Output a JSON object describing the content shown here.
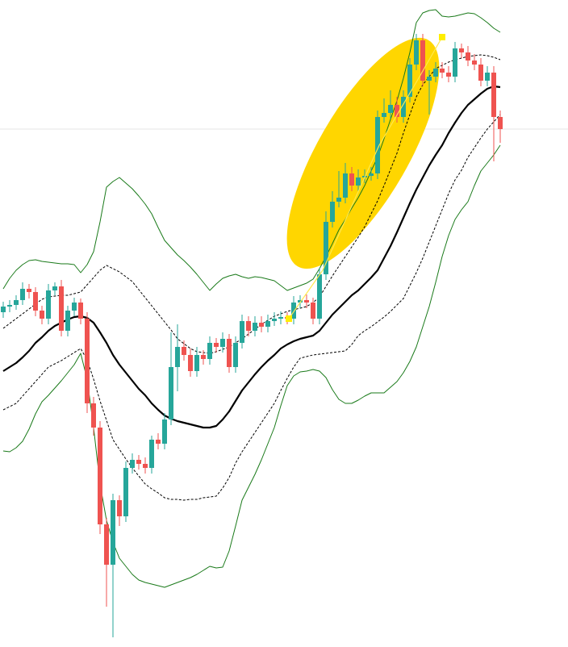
{
  "chart_data": {
    "type": "candlestick",
    "categories": [
      null,
      null,
      null,
      null,
      null,
      null,
      null,
      null,
      null,
      null,
      null,
      null,
      null,
      null,
      null,
      null,
      null,
      null,
      null,
      null,
      null,
      null,
      null,
      null,
      null,
      null,
      null,
      null,
      null,
      null,
      null,
      null,
      null,
      null,
      null,
      null,
      null,
      null,
      null,
      null,
      null,
      null,
      null,
      null,
      null,
      null,
      null,
      null,
      null,
      null,
      null,
      null,
      null,
      null,
      null,
      null,
      null,
      null,
      null,
      null,
      null,
      null,
      null,
      null,
      null,
      null,
      null,
      null,
      null,
      null,
      null,
      null,
      null,
      null,
      null,
      null,
      null,
      null
    ],
    "open": [
      415,
      422,
      424,
      430,
      444,
      440,
      417,
      407,
      442,
      447,
      392,
      417,
      427,
      407,
      302,
      272,
      152,
      102,
      182,
      162,
      222,
      232,
      227,
      222,
      257,
      252,
      282,
      347,
      372,
      362,
      342,
      362,
      357,
      377,
      372,
      382,
      347,
      377,
      404,
      392,
      402,
      397,
      404,
      407,
      409,
      407,
      427,
      430,
      427,
      407,
      462,
      527,
      552,
      557,
      587,
      572,
      582,
      584,
      587,
      657,
      662,
      672,
      657,
      682,
      722,
      752,
      702,
      707,
      717,
      712,
      707,
      742,
      737,
      727,
      722,
      702,
      712,
      657
    ],
    "high": [
      428,
      430,
      436,
      452,
      450,
      446,
      423,
      450,
      452,
      455,
      423,
      433,
      432,
      415,
      310,
      280,
      160,
      190,
      188,
      230,
      240,
      238,
      235,
      262,
      265,
      290,
      390,
      400,
      380,
      370,
      372,
      368,
      385,
      383,
      390,
      388,
      385,
      412,
      410,
      410,
      410,
      412,
      415,
      416,
      415,
      435,
      436,
      437,
      433,
      470,
      540,
      565,
      590,
      600,
      595,
      592,
      592,
      595,
      665,
      680,
      690,
      682,
      690,
      730,
      760,
      760,
      715,
      725,
      725,
      720,
      750,
      748,
      745,
      735,
      730,
      720,
      720,
      665
    ],
    "low": [
      408,
      415,
      418,
      424,
      432,
      410,
      400,
      400,
      436,
      385,
      385,
      410,
      400,
      290,
      262,
      140,
      50,
      12,
      150,
      155,
      215,
      220,
      215,
      215,
      245,
      245,
      275,
      317,
      355,
      335,
      335,
      350,
      350,
      365,
      365,
      340,
      340,
      370,
      385,
      385,
      390,
      390,
      398,
      400,
      400,
      400,
      420,
      420,
      400,
      400,
      455,
      520,
      545,
      550,
      565,
      565,
      575,
      578,
      580,
      650,
      655,
      650,
      650,
      675,
      715,
      695,
      660,
      700,
      705,
      700,
      700,
      730,
      720,
      715,
      695,
      695,
      602,
      625
    ],
    "close": [
      422,
      424,
      430,
      444,
      440,
      417,
      407,
      442,
      447,
      392,
      417,
      427,
      407,
      302,
      272,
      152,
      102,
      182,
      162,
      222,
      232,
      227,
      222,
      257,
      252,
      282,
      347,
      372,
      362,
      342,
      362,
      357,
      377,
      372,
      382,
      347,
      377,
      404,
      392,
      402,
      397,
      404,
      407,
      409,
      407,
      427,
      430,
      427,
      407,
      462,
      527,
      552,
      557,
      587,
      572,
      582,
      584,
      587,
      657,
      662,
      672,
      657,
      682,
      722,
      752,
      702,
      707,
      717,
      712,
      707,
      742,
      737,
      727,
      722,
      702,
      712,
      657,
      642
    ],
    "up_color": "#26a69a",
    "down_color": "#ef5350",
    "ylim": [
      0,
      802
    ],
    "series": [
      {
        "color": "#000000",
        "line_style": "solid",
        "values": [
          342,
          347,
          352,
          359,
          367,
          377,
          384,
          392,
          398,
          402,
          406,
          409,
          410,
          408,
          402,
          390,
          377,
          362,
          350,
          340,
          330,
          320,
          312,
          302,
          294,
          287,
          283,
          280,
          278,
          276,
          274,
          272,
          272,
          274,
          282,
          292,
          305,
          318,
          328,
          338,
          347,
          355,
          362,
          370,
          375,
          379,
          382,
          384,
          386,
          392,
          402,
          412,
          420,
          428,
          436,
          442,
          450,
          458,
          467,
          482,
          497,
          514,
          532,
          550,
          567,
          582,
          597,
          610,
          622,
          637,
          650,
          662,
          672,
          679,
          686,
          692,
          695,
          694
        ]
      },
      {
        "color": "#1a7a1a",
        "line_style": "solid",
        "values": [
          444,
          457,
          467,
          474,
          479,
          480,
          478,
          477,
          476,
          475,
          475,
          474,
          464,
          474,
          490,
          527,
          570,
          577,
          582,
          575,
          568,
          559,
          549,
          537,
          520,
          504,
          495,
          486,
          479,
          471,
          462,
          452,
          442,
          450,
          457,
          460,
          462,
          459,
          457,
          459,
          458,
          456,
          454,
          448,
          442,
          445,
          448,
          451,
          456,
          469,
          484,
          500,
          517,
          530,
          544,
          557,
          572,
          590,
          607,
          630,
          654,
          677,
          705,
          737,
          774,
          786,
          789,
          790,
          782,
          781,
          782,
          784,
          786,
          785,
          780,
          774,
          767,
          762
        ]
      },
      {
        "color": "#1a7a1a",
        "line_style": "solid",
        "values": [
          243,
          242,
          247,
          255,
          270,
          289,
          304,
          312,
          321,
          330,
          340,
          350,
          364,
          332,
          272,
          202,
          157,
          130,
          110,
          100,
          90,
          83,
          80,
          78,
          76,
          74,
          77,
          80,
          83,
          86,
          90,
          95,
          100,
          98,
          99,
          119,
          150,
          182,
          198,
          214,
          232,
          252,
          272,
          299,
          324,
          336,
          341,
          342,
          344,
          342,
          334,
          319,
          307,
          302,
          302,
          306,
          311,
          315,
          315,
          315,
          322,
          329,
          340,
          354,
          372,
          397,
          422,
          452,
          484,
          510,
          530,
          542,
          552,
          572,
          590,
          600,
          610,
          622
        ]
      },
      {
        "color": "#000000",
        "line_style": "dashed",
        "values": [
          395,
          401,
          407,
          413,
          419,
          425,
          431,
          434,
          435,
          436,
          436,
          438,
          440,
          449,
          458,
          467,
          473,
          469,
          465,
          459,
          453,
          443,
          433,
          423,
          413,
          403,
          393,
          382,
          376,
          370,
          366,
          365,
          364,
          366,
          369,
          372,
          377,
          382,
          388,
          394,
          400,
          405,
          410,
          413,
          416,
          418,
          420,
          422,
          427,
          434,
          447,
          460,
          472,
          484,
          496,
          508,
          521,
          537,
          553,
          572,
          592,
          612,
          637,
          660,
          682,
          697,
          707,
          717,
          721,
          725,
          728,
          730,
          732,
          733,
          734,
          733,
          731,
          728
        ]
      },
      {
        "color": "#000000",
        "line_style": "dashed",
        "values": [
          294,
          298,
          302,
          311,
          320,
          329,
          338,
          347,
          351,
          355,
          360,
          365,
          370,
          356,
          332,
          305,
          281,
          257,
          245,
          233,
          222,
          212,
          202,
          196,
          191,
          185,
          183,
          183,
          182,
          183,
          183,
          185,
          186,
          187,
          197,
          210,
          228,
          242,
          254,
          266,
          278,
          290,
          302,
          318,
          333,
          347,
          358,
          360,
          362,
          363,
          364,
          365,
          366,
          367,
          375,
          386,
          392,
          397,
          403,
          409,
          416,
          424,
          432,
          448,
          464,
          482,
          502,
          522,
          542,
          562,
          579,
          591,
          607,
          619,
          631,
          642,
          651,
          660
        ]
      }
    ]
  }
}
